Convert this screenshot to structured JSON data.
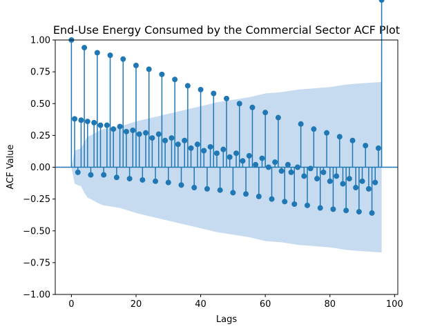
{
  "chart_data": {
    "type": "stem",
    "title": "End-Use Energy Consumed by the Commercial Sector ACF Plot",
    "xlabel": "Lags",
    "ylabel": "ACF Value",
    "xlim": [
      -5,
      101
    ],
    "ylim": [
      -1.0,
      1.0
    ],
    "xticks": [
      0,
      20,
      40,
      60,
      80,
      100
    ],
    "yticks": [
      -1.0,
      -0.75,
      -0.5,
      -0.25,
      0.0,
      0.25,
      0.5,
      0.75,
      1.0
    ],
    "xtick_labels": [
      "0",
      "20",
      "40",
      "60",
      "80",
      "100"
    ],
    "ytick_labels": [
      "−1.00",
      "−0.75",
      "−0.50",
      "−0.25",
      "0.00",
      "0.25",
      "0.50",
      "0.75",
      "1.00"
    ],
    "grid": false,
    "colors": {
      "stem": "#1f77b4",
      "band": "#c6dbef"
    },
    "series": [
      {
        "lags": [
          0,
          1,
          2,
          3,
          4,
          5,
          6,
          7,
          8,
          9,
          10,
          11,
          12,
          13,
          14,
          15,
          16,
          17,
          18,
          19,
          20,
          21,
          22,
          23,
          24,
          25,
          26,
          27,
          28,
          29,
          30,
          31,
          32,
          33,
          34,
          35,
          36,
          37,
          38,
          39,
          40,
          41,
          42,
          43,
          44,
          45,
          46,
          47,
          48,
          49,
          50,
          51,
          52,
          53,
          54,
          55,
          56,
          57,
          58,
          59,
          60,
          61,
          62,
          63,
          64,
          65,
          66,
          67,
          68,
          69,
          70,
          71,
          72,
          73,
          74,
          75,
          76,
          77,
          78,
          79,
          80,
          81,
          82,
          83,
          84,
          85,
          86,
          87,
          88,
          89,
          90,
          91,
          92,
          93,
          94,
          95,
          96
        ],
        "acf": [
          1.0,
          0.38,
          -0.04,
          0.37,
          0.94,
          0.36,
          -0.06,
          0.35,
          0.9,
          0.33,
          -0.06,
          0.33,
          0.88,
          0.3,
          -0.08,
          0.32,
          0.85,
          0.28,
          -0.09,
          0.29,
          0.8,
          0.26,
          -0.1,
          0.27,
          0.77,
          0.23,
          -0.11,
          0.26,
          0.73,
          0.21,
          -0.12,
          0.23,
          0.69,
          0.18,
          -0.14,
          0.21,
          0.64,
          0.15,
          -0.16,
          0.18,
          0.61,
          0.13,
          -0.17,
          0.16,
          0.58,
          0.11,
          -0.18,
          0.14,
          0.54,
          0.08,
          -0.2,
          0.11,
          0.5,
          0.05,
          -0.21,
          0.09,
          0.47,
          0.02,
          -0.23,
          0.07,
          0.43,
          0.0,
          -0.25,
          0.04,
          0.39,
          -0.03,
          -0.27,
          0.02,
          -0.04,
          -0.29,
          0.0,
          0.34,
          -0.07,
          -0.3,
          -0.01,
          0.3,
          -0.09,
          -0.32,
          -0.04,
          0.27,
          -0.11,
          -0.33,
          -0.07,
          0.24,
          -0.13,
          -0.34,
          -0.09,
          0.21,
          -0.16,
          -0.35,
          -0.11,
          0.17,
          -0.17,
          -0.36,
          -0.12,
          0.15
        ]
      }
    ],
    "confidence_band": {
      "lags": [
        0,
        1,
        2,
        3,
        4,
        5,
        6,
        8,
        10,
        15,
        20,
        25,
        30,
        35,
        40,
        45,
        50,
        55,
        60,
        65,
        70,
        75,
        80,
        85,
        90,
        96
      ],
      "upper": [
        0.0,
        0.13,
        0.14,
        0.15,
        0.2,
        0.24,
        0.25,
        0.28,
        0.3,
        0.32,
        0.36,
        0.39,
        0.42,
        0.45,
        0.48,
        0.51,
        0.53,
        0.55,
        0.58,
        0.59,
        0.61,
        0.62,
        0.63,
        0.65,
        0.66,
        0.67
      ],
      "lower": [
        0.0,
        -0.13,
        -0.14,
        -0.15,
        -0.2,
        -0.24,
        -0.25,
        -0.28,
        -0.3,
        -0.32,
        -0.36,
        -0.39,
        -0.42,
        -0.45,
        -0.48,
        -0.51,
        -0.53,
        -0.55,
        -0.58,
        -0.59,
        -0.61,
        -0.62,
        -0.63,
        -0.65,
        -0.66,
        -0.67
      ]
    }
  }
}
